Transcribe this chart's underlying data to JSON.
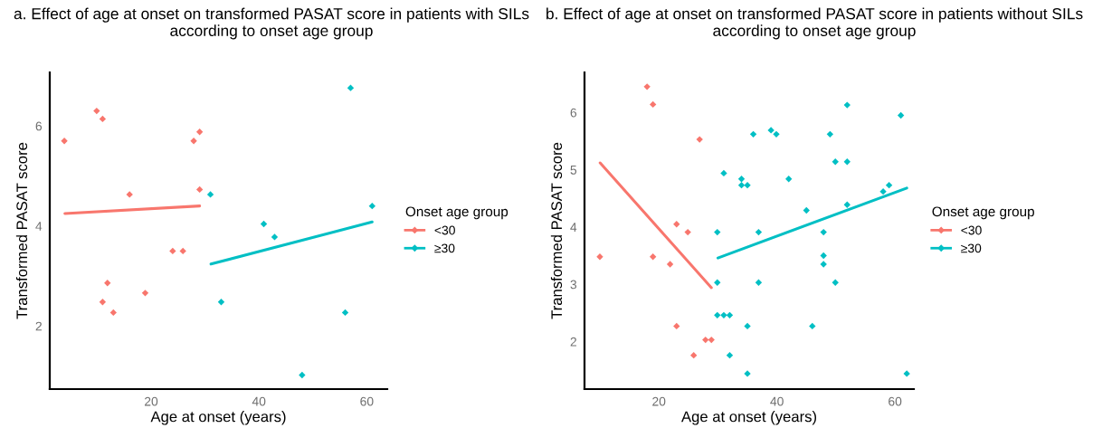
{
  "chart_data": [
    {
      "type": "scatter",
      "title": "a. Effect of age at onset on transformed PASAT score in patients with SILs according to onset age group",
      "xlabel": "Age at onset (years)",
      "ylabel": "Transformed PASAT score",
      "legend_title": "Onset age group",
      "legend": "right",
      "grid": false,
      "marker": "diamond",
      "xlim": [
        1.2,
        63.8
      ],
      "ylim": [
        0.74,
        7.07
      ],
      "xticks": [
        20,
        40,
        60
      ],
      "yticks": [
        2,
        4,
        6
      ],
      "series": [
        {
          "name": "<30",
          "color": "#f8766d",
          "x": [
            3.9,
            9.9,
            11.0,
            27.9,
            29.0,
            29.0,
            16.0,
            24.0,
            25.9,
            11.9,
            18.9,
            11.0,
            13.0
          ],
          "values": [
            5.7,
            6.3,
            6.14,
            5.7,
            5.88,
            4.73,
            4.63,
            3.5,
            3.5,
            2.86,
            2.66,
            2.48,
            2.27
          ]
        },
        {
          "name": "≥30",
          "color": "#00bfc4",
          "x": [
            31.0,
            57.0,
            61.0,
            40.9,
            42.9,
            33.0,
            56.0,
            48.0
          ],
          "values": [
            4.63,
            6.76,
            4.4,
            4.04,
            3.78,
            2.48,
            2.27,
            1.02
          ]
        },
        {
          "type": "line",
          "marker": "none",
          "color": "#f8766d",
          "x": [
            4.0,
            29.0
          ],
          "values": [
            4.25,
            4.4
          ]
        },
        {
          "type": "line",
          "marker": "none",
          "color": "#00bfc4",
          "x": [
            31.1,
            61.0
          ],
          "values": [
            3.24,
            4.08
          ]
        }
      ]
    },
    {
      "type": "scatter",
      "title": "b. Effect of age at onset on transformed PASAT score in patients without SILs according to onset age group",
      "xlabel": "Age at onset (years)",
      "ylabel": "Transformed PASAT score",
      "legend_title": "Onset age group",
      "legend": "right",
      "grid": false,
      "marker": "diamond",
      "xlim": [
        7.4,
        63.2
      ],
      "ylim": [
        1.17,
        6.7
      ],
      "xticks": [
        20,
        40,
        60
      ],
      "yticks": [
        2,
        3,
        4,
        5,
        6
      ],
      "series": [
        {
          "name": "<30",
          "color": "#f8766d",
          "x": [
            18.0,
            19.0,
            26.9,
            10.0,
            19.0,
            23.0,
            24.9,
            21.9,
            23.0,
            27.9,
            28.9,
            25.9
          ],
          "values": [
            6.45,
            6.14,
            5.53,
            3.48,
            3.48,
            4.05,
            3.91,
            3.35,
            2.27,
            2.03,
            2.03,
            1.76
          ]
        },
        {
          "name": "≥30",
          "color": "#00bfc4",
          "x": [
            29.9,
            29.9,
            29.9,
            31.0,
            32.0,
            31.0,
            32.0,
            34.0,
            34.0,
            35.0,
            35.0,
            35.0,
            36.0,
            36.9,
            36.9,
            39.0,
            39.9,
            42.0,
            45.0,
            46.0,
            47.9,
            47.9,
            47.9,
            49.0,
            49.9,
            49.9,
            51.9,
            51.9,
            51.9,
            58.0,
            59.0,
            61.0,
            62.0
          ],
          "values": [
            3.91,
            3.03,
            2.46,
            2.46,
            2.46,
            4.94,
            1.76,
            4.84,
            4.73,
            4.73,
            2.27,
            1.44,
            5.62,
            3.91,
            3.03,
            5.69,
            5.62,
            4.84,
            4.29,
            2.27,
            3.91,
            3.5,
            3.35,
            5.62,
            5.14,
            3.03,
            6.13,
            5.14,
            4.39,
            4.62,
            4.73,
            5.95,
            1.44
          ]
        },
        {
          "type": "line",
          "marker": "none",
          "color": "#f8766d",
          "x": [
            10.05,
            28.9
          ],
          "values": [
            5.12,
            2.94
          ]
        },
        {
          "type": "line",
          "marker": "none",
          "color": "#00bfc4",
          "x": [
            30.0,
            62.0
          ],
          "values": [
            3.46,
            4.68
          ]
        }
      ]
    }
  ]
}
